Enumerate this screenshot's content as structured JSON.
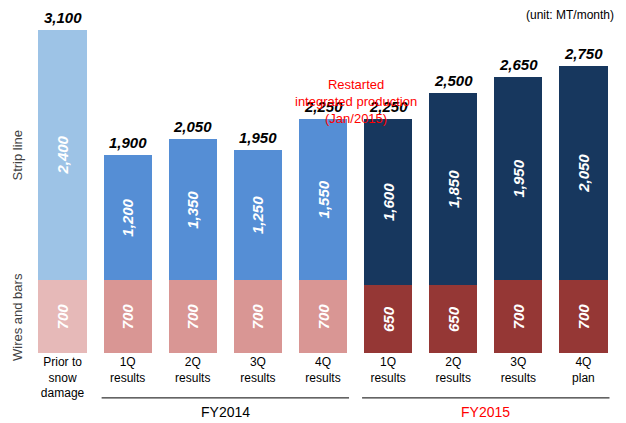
{
  "chart_data": {
    "type": "bar",
    "stacked": true,
    "data_labels": true,
    "tick_labels": "x",
    "grid": false,
    "unit": "(unit: MT/month)",
    "categories": [
      "Prior to\nsnow\ndamage",
      "1Q\nresults",
      "2Q\nresults",
      "3Q\nresults",
      "4Q\nresults",
      "1Q\nresults",
      "2Q\nresults",
      "3Q\nresults",
      "4Q\nplan"
    ],
    "series": [
      {
        "name": "Wires and bars",
        "values": [
          700,
          700,
          700,
          700,
          700,
          650,
          650,
          700,
          700
        ],
        "value_labels": [
          "700",
          "700",
          "700",
          "700",
          "700",
          "650",
          "650",
          "700",
          "700"
        ],
        "colors": [
          "#E6B9B8",
          "#D99694",
          "#D99694",
          "#D99694",
          "#D99694",
          "#953735",
          "#953735",
          "#953735",
          "#953735"
        ]
      },
      {
        "name": "Strip line",
        "values": [
          2400,
          1200,
          1350,
          1250,
          1550,
          1600,
          1850,
          1950,
          2050
        ],
        "value_labels": [
          "2,400",
          "1,200",
          "1,350",
          "1,250",
          "1,550",
          "1,600",
          "1,850",
          "1,950",
          "2,050"
        ],
        "colors": [
          "#9DC3E6",
          "#558ED5",
          "#558ED5",
          "#558ED5",
          "#558ED5",
          "#17375E",
          "#17375E",
          "#17375E",
          "#17375E"
        ]
      }
    ],
    "totals": [
      3100,
      1900,
      2050,
      1950,
      2250,
      2250,
      2500,
      2650,
      2750
    ],
    "total_labels": [
      "3,100",
      "1,900",
      "2,050",
      "1,950",
      "2,250",
      "2,250",
      "2,500",
      "2,650",
      "2,750"
    ],
    "annotations": [
      {
        "text": "Restarted\nintegrated production\n(Jan/2015)",
        "color": "#FF0000"
      }
    ],
    "groups": [
      {
        "label": "FY2014",
        "span": [
          1,
          4
        ],
        "color": "#000000"
      },
      {
        "label": "FY2015",
        "span": [
          5,
          8
        ],
        "color": "#FF0000"
      }
    ],
    "ylim": [
      0,
      3100
    ]
  }
}
